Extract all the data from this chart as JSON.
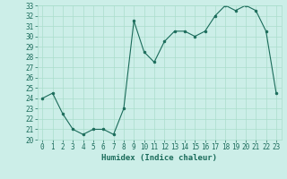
{
  "x": [
    0,
    1,
    2,
    3,
    4,
    5,
    6,
    7,
    8,
    9,
    10,
    11,
    12,
    13,
    14,
    15,
    16,
    17,
    18,
    19,
    20,
    21,
    22,
    23
  ],
  "y": [
    24.0,
    24.5,
    22.5,
    21.0,
    20.5,
    21.0,
    21.0,
    20.5,
    23.0,
    31.5,
    28.5,
    27.5,
    29.5,
    30.5,
    30.5,
    30.0,
    30.5,
    32.0,
    33.0,
    32.5,
    33.0,
    32.5,
    30.5,
    24.5
  ],
  "xlabel": "Humidex (Indice chaleur)",
  "ylim": [
    20,
    33
  ],
  "yticks": [
    20,
    21,
    22,
    23,
    24,
    25,
    26,
    27,
    28,
    29,
    30,
    31,
    32,
    33
  ],
  "xticks": [
    0,
    1,
    2,
    3,
    4,
    5,
    6,
    7,
    8,
    9,
    10,
    11,
    12,
    13,
    14,
    15,
    16,
    17,
    18,
    19,
    20,
    21,
    22,
    23
  ],
  "line_color": "#1a6b5a",
  "marker_color": "#1a6b5a",
  "bg_color": "#cceee8",
  "grid_color": "#aaddcc",
  "tick_color": "#1a6b5a",
  "label_fontsize": 6.5,
  "tick_fontsize": 5.5
}
